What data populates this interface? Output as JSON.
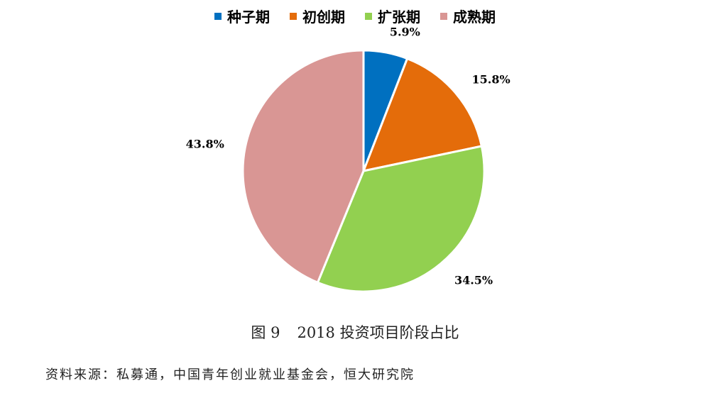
{
  "chart_data": {
    "type": "pie",
    "legend_position": "top",
    "categories": [
      "种子期",
      "初创期",
      "扩张期",
      "成熟期"
    ],
    "values": [
      5.9,
      15.8,
      34.5,
      43.8
    ],
    "labels": [
      "5.9%",
      "15.8%",
      "34.5%",
      "43.8%"
    ],
    "colors": [
      "#0070c0",
      "#e46c0a",
      "#92d050",
      "#d99694"
    ]
  },
  "caption": {
    "figure_no": "图 9",
    "title": "2018 投资项目阶段占比"
  },
  "source": "资料来源：私募通，中国青年创业就业基金会，恒大研究院"
}
